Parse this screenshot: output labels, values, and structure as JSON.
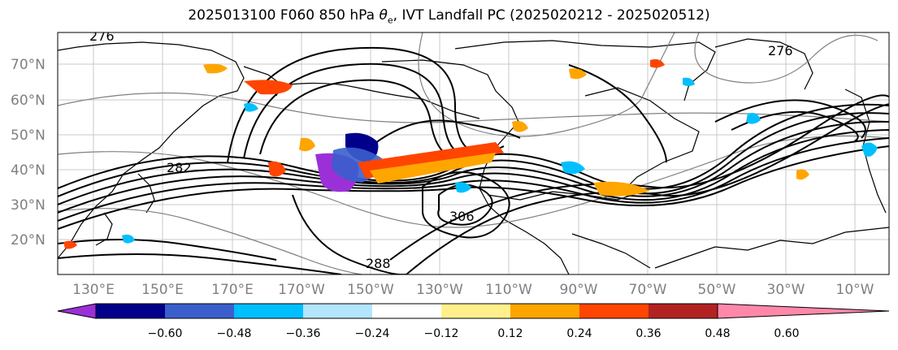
{
  "title": {
    "prefix": "2025013100 F060 850 hPa ",
    "symbol": "θ",
    "subscript": "e",
    "suffix": ", IVT Landfall PC (2025020212 - 2025020512)"
  },
  "axes": {
    "lat_labels": [
      "70°N",
      "60°N",
      "50°N",
      "40°N",
      "30°N",
      "20°N"
    ],
    "lon_labels": [
      "130°E",
      "150°E",
      "170°E",
      "170°W",
      "150°W",
      "130°W",
      "110°W",
      "90°W",
      "70°W",
      "50°W",
      "30°W",
      "10°W"
    ]
  },
  "contour_labels": [
    "276",
    "282",
    "306",
    "288",
    "276"
  ],
  "colorbar": {
    "colors": [
      "#9b30d9",
      "#00008b",
      "#3a5fcd",
      "#00bfff",
      "#b3e5fc",
      "#ffffff",
      "#fff08c",
      "#ffa500",
      "#ff4500",
      "#b22222",
      "#ff88aa"
    ],
    "tick_labels": [
      "−0.60",
      "−0.48",
      "−0.36",
      "−0.24",
      "−0.12",
      "0.12",
      "0.24",
      "0.36",
      "0.48",
      "0.60"
    ]
  }
}
